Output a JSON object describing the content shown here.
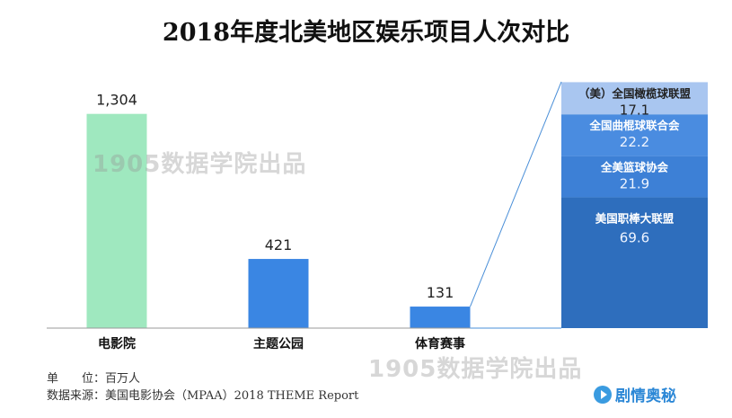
{
  "title": "2018年度北美地区娱乐项目人次对比",
  "watermark": "1905数据学院出品",
  "footer": {
    "unit": "单　　位：百万人",
    "source": "数据来源：美国电影协会（MPAA）2018 THEME Report"
  },
  "brand": {
    "text": "剧情奥秘",
    "icon": "play-icon"
  },
  "colors": {
    "cinema_bar": "#9fe8bf",
    "bar": "#3a86e3",
    "stack_1": "#2e6ebd",
    "stack_2": "#3d80d6",
    "stack_3": "#4a8ce0",
    "stack_4": "#a9c6f0",
    "connector": "#4a8fd8"
  },
  "chart_data": [
    {
      "type": "bar",
      "categories": [
        "电影院",
        "主题公园",
        "体育赛事"
      ],
      "values": [
        1304,
        421,
        131
      ],
      "value_labels": [
        "1,304",
        "421",
        "131"
      ],
      "ylim": [
        0,
        1450
      ]
    },
    {
      "type": "bar",
      "stacked": true,
      "total": 131,
      "series": [
        {
          "name": "美国职棒大联盟",
          "value": 69.6,
          "label": "69.6"
        },
        {
          "name": "全美篮球协会",
          "value": 21.9,
          "label": "21.9"
        },
        {
          "name": "全国曲棍球联合会",
          "value": 22.2,
          "label": "22.2"
        },
        {
          "name": "（美）全国橄榄球联盟",
          "value": 17.1,
          "label": "17.1"
        }
      ]
    }
  ]
}
